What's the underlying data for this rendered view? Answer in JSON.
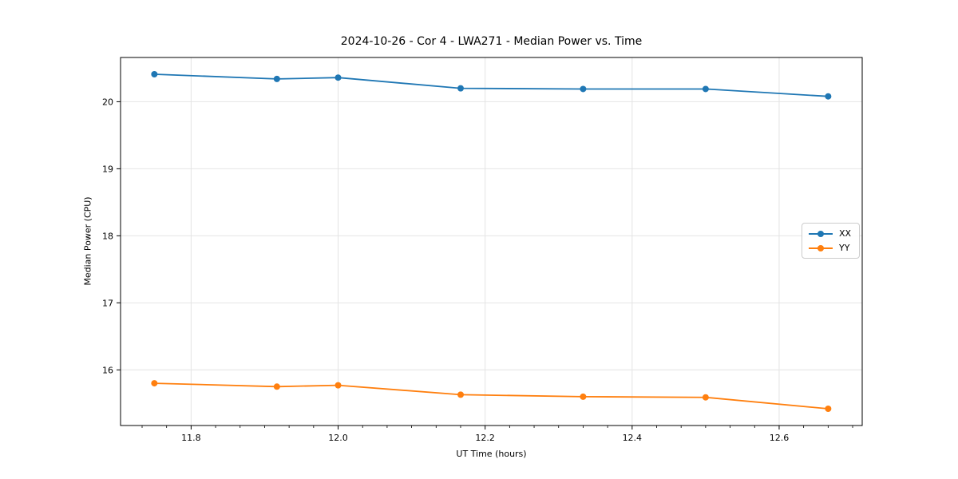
{
  "chart_data": {
    "type": "line",
    "title": "2024-10-26 - Cor 4 - LWA271 - Median Power vs. Time",
    "xlabel": "UT Time (hours)",
    "ylabel": "Median Power (CPU)",
    "x": [
      11.75,
      11.9167,
      12.0,
      12.1667,
      12.3333,
      12.5,
      12.6667
    ],
    "series": [
      {
        "name": "XX",
        "color": "#1f77b4",
        "values": [
          20.41,
          20.34,
          20.36,
          20.2,
          20.19,
          20.19,
          20.08
        ]
      },
      {
        "name": "YY",
        "color": "#ff7f0e",
        "values": [
          15.8,
          15.75,
          15.77,
          15.63,
          15.6,
          15.59,
          15.42
        ]
      }
    ],
    "xlim": [
      11.704,
      12.713
    ],
    "ylim": [
      15.17,
      20.66
    ],
    "x_major_ticks": [
      11.8,
      12.0,
      12.2,
      12.4,
      12.6
    ],
    "x_tick_labels": [
      "11.8",
      "12.0",
      "12.2",
      "12.4",
      "12.6"
    ],
    "x_minor_step": 0.0333333,
    "y_major_ticks": [
      16,
      17,
      18,
      19,
      20
    ],
    "y_tick_labels": [
      "16",
      "17",
      "18",
      "19",
      "20"
    ],
    "grid": true,
    "legend_position": "center right",
    "marker": "circle",
    "colors": {
      "grid": "#e4e4e4",
      "spine": "#000000",
      "background": "#ffffff"
    }
  }
}
